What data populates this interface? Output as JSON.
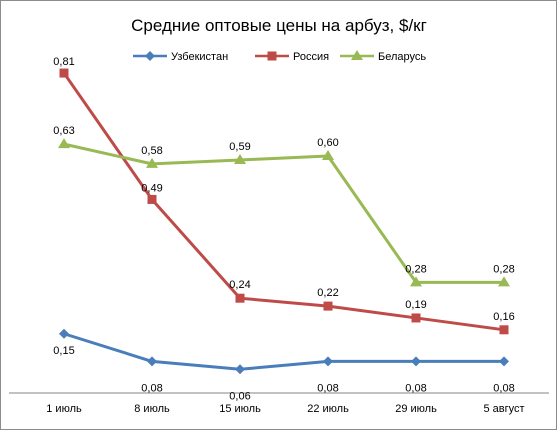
{
  "chart_data": {
    "type": "line",
    "title": "Средние оптовые цены на арбуз, $/кг",
    "xlabel": "",
    "ylabel": "",
    "categories": [
      "1 июль",
      "8 июль",
      "15 июль",
      "22 июль",
      "29 июль",
      "5 август"
    ],
    "ylim": [
      0,
      0.9
    ],
    "grid": false,
    "legend_position": "top",
    "series": [
      {
        "name": "Узбекистан",
        "color": "#4a7ebb",
        "marker": "diamond",
        "values": [
          0.15,
          0.08,
          0.06,
          0.08,
          0.08,
          0.08
        ],
        "labels": [
          "0,15",
          "0,08",
          "0,06",
          "0,08",
          "0,08",
          "0,08"
        ]
      },
      {
        "name": "Россия",
        "color": "#be4b48",
        "marker": "square",
        "values": [
          0.81,
          0.49,
          0.24,
          0.22,
          0.19,
          0.16
        ],
        "labels": [
          "0,81",
          "0,49",
          "0,24",
          "0,22",
          "0,19",
          "0,16"
        ]
      },
      {
        "name": "Беларусь",
        "color": "#98b954",
        "marker": "triangle",
        "values": [
          0.63,
          0.58,
          0.59,
          0.6,
          0.28,
          0.28
        ],
        "labels": [
          "0,63",
          "0,58",
          "0,59",
          "0,60",
          "0,28",
          "0,28"
        ]
      }
    ]
  }
}
